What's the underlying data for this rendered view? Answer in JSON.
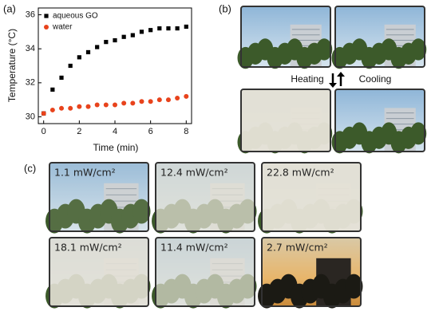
{
  "chart_data": {
    "type": "scatter",
    "panel_label": "(a)",
    "x_label": "Time (min)",
    "y_label": "Temperature (°C)",
    "x": [
      0,
      0.5,
      1,
      1.5,
      2,
      2.5,
      3,
      3.5,
      4,
      4.5,
      5,
      5.5,
      6,
      6.5,
      7,
      7.5,
      8
    ],
    "series": [
      {
        "name": "aqueous GO",
        "color": "#000000",
        "marker": "square",
        "values": [
          30.2,
          31.6,
          32.3,
          33.0,
          33.5,
          33.8,
          34.1,
          34.4,
          34.5,
          34.7,
          34.8,
          35.0,
          35.1,
          35.2,
          35.2,
          35.2,
          35.3
        ]
      },
      {
        "name": "water",
        "color": "#e8431c",
        "marker": "circle",
        "values": [
          30.2,
          30.4,
          30.5,
          30.5,
          30.6,
          30.6,
          30.7,
          30.7,
          30.7,
          30.8,
          30.8,
          30.9,
          30.9,
          31.0,
          31.0,
          31.1,
          31.2
        ]
      }
    ],
    "xlim": [
      -0.3,
      8.3
    ],
    "xticks": [
      0,
      2,
      4,
      6,
      8
    ],
    "ylim": [
      29.6,
      36.4
    ],
    "yticks": [
      30,
      32,
      34,
      36
    ],
    "legend": "upper left"
  },
  "panel_b": {
    "label": "(b)",
    "heating": "Heating",
    "cooling": "Cooling"
  },
  "panel_c": {
    "label": "(c)",
    "photos": [
      "1.1 mW/cm²",
      "12.4 mW/cm²",
      "22.8 mW/cm²",
      "18.1 mW/cm²",
      "11.4 mW/cm²",
      "2.7 mW/cm²"
    ]
  }
}
